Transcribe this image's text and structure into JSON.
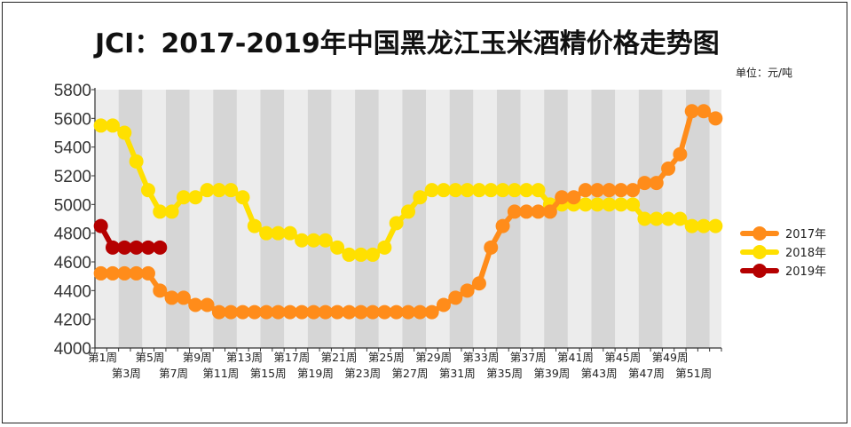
{
  "chart_data": {
    "type": "line",
    "title": "JCI：2017-2019年中国黑龙江玉米酒精价格走势图",
    "unit_label": "单位：元/吨",
    "xlabel": "",
    "ylabel": "",
    "ylim": [
      4000,
      5800
    ],
    "y_ticks": [
      "4000",
      "4200",
      "4400",
      "4600",
      "4800",
      "5000",
      "5200",
      "5400",
      "5600",
      "5800"
    ],
    "x_tick_labels_row1": [
      "第1周",
      "第5周",
      "第9周",
      "第13周",
      "第17周",
      "第21周",
      "第25周",
      "第29周",
      "第33周",
      "第37周",
      "第41周",
      "第45周",
      "第49周"
    ],
    "x_tick_labels_row2": [
      "第3周",
      "第7周",
      "第11周",
      "第15周",
      "第19周",
      "第23周",
      "第27周",
      "第31周",
      "第35周",
      "第39周",
      "第43周",
      "第47周",
      "第51周"
    ],
    "grid": "alternating vertical bands",
    "legend_position": "right",
    "series": [
      {
        "name": "2017年",
        "color": "#FF8C1A",
        "values": [
          4520,
          4520,
          4520,
          4520,
          4520,
          4400,
          4350,
          4350,
          4300,
          4300,
          4250,
          4250,
          4250,
          4250,
          4250,
          4250,
          4250,
          4250,
          4250,
          4250,
          4250,
          4250,
          4250,
          4250,
          4250,
          4250,
          4250,
          4250,
          4250,
          4300,
          4350,
          4400,
          4450,
          4700,
          4850,
          4950,
          4950,
          4950,
          4950,
          5050,
          5050,
          5100,
          5100,
          5100,
          5100,
          5100,
          5150,
          5150,
          5250,
          5350,
          5650,
          5650,
          5600
        ]
      },
      {
        "name": "2018年",
        "color": "#FFE000",
        "values": [
          5550,
          5550,
          5500,
          5300,
          5100,
          4950,
          4950,
          5050,
          5050,
          5100,
          5100,
          5100,
          5050,
          4850,
          4800,
          4800,
          4800,
          4750,
          4750,
          4750,
          4700,
          4650,
          4650,
          4650,
          4700,
          4870,
          4950,
          5050,
          5100,
          5100,
          5100,
          5100,
          5100,
          5100,
          5100,
          5100,
          5100,
          5100,
          5000,
          5000,
          5000,
          5000,
          5000,
          5000,
          5000,
          5000,
          4900,
          4900,
          4900,
          4900,
          4850,
          4850,
          4850
        ]
      },
      {
        "name": "2019年",
        "color": "#B50000",
        "values": [
          4850,
          4700,
          4700,
          4700,
          4700,
          4700
        ]
      }
    ]
  }
}
